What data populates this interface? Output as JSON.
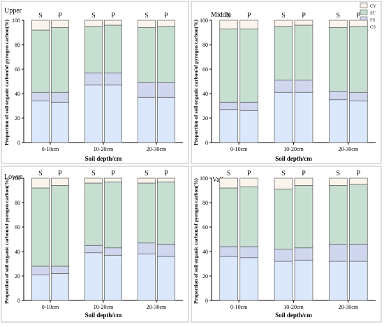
{
  "chart_data": [
    {
      "type": "bar",
      "stacked": true,
      "title": "Upper",
      "xlabel": "Soil depth/cm",
      "ylabel": "Proportion of soil organic carbon/of pyrogen carbon(%)",
      "ylim": [
        0,
        100
      ],
      "yticks": [
        0,
        20,
        40,
        60,
        80,
        100
      ],
      "categories": [
        "0-10cm",
        "10-20cm",
        "20-30cm"
      ],
      "bar_labels": [
        "S",
        "P"
      ],
      "series": [
        {
          "name": "CS",
          "color": "#dbe8fb",
          "values": [
            [
              34,
              33
            ],
            [
              47,
              47
            ],
            [
              37,
              37
            ]
          ]
        },
        {
          "name": "FS",
          "color": "#cfd6ee",
          "values": [
            [
              7,
              8
            ],
            [
              10,
              10
            ],
            [
              12,
              12
            ]
          ]
        },
        {
          "name": "ST",
          "color": "#c6dfd1",
          "values": [
            [
              51,
              53
            ],
            [
              38,
              39
            ],
            [
              45,
              46
            ]
          ]
        },
        {
          "name": "CY",
          "color": "#fbf4ec",
          "values": [
            [
              8,
              6
            ],
            [
              5,
              4
            ],
            [
              6,
              5
            ]
          ]
        }
      ],
      "legend": {
        "placement": "top-right"
      }
    },
    {
      "type": "bar",
      "stacked": true,
      "title": "Middle",
      "xlabel": "Soil depth/cm",
      "ylabel": "Proportion of soil organic carbon/of pyrogen carbon(%)",
      "ylim": [
        0,
        100
      ],
      "yticks": [
        0,
        20,
        40,
        60,
        80,
        100
      ],
      "categories": [
        "0-10cm",
        "10-20cm",
        "20-30cm"
      ],
      "bar_labels": [
        "S",
        "P"
      ],
      "series": [
        {
          "name": "CS",
          "color": "#dbe8fb",
          "values": [
            [
              27,
              26
            ],
            [
              41,
              41
            ],
            [
              35,
              34
            ]
          ]
        },
        {
          "name": "FS",
          "color": "#cfd6ee",
          "values": [
            [
              6,
              7
            ],
            [
              10,
              10
            ],
            [
              7,
              7
            ]
          ]
        },
        {
          "name": "ST",
          "color": "#c6dfd1",
          "values": [
            [
              60,
              60
            ],
            [
              44,
              45
            ],
            [
              52,
              54
            ]
          ]
        },
        {
          "name": "CY",
          "color": "#fbf4ec",
          "values": [
            [
              7,
              7
            ],
            [
              5,
              4
            ],
            [
              6,
              5
            ]
          ]
        }
      ],
      "legend": {
        "placement": "top-right"
      }
    },
    {
      "type": "bar",
      "stacked": true,
      "title": "Lower",
      "xlabel": "Soil depth/cm",
      "ylabel": "Proportion of soil organic carbon/of pyrogen carbon(%)",
      "ylim": [
        0,
        100
      ],
      "yticks": [
        0,
        20,
        40,
        60,
        80,
        100
      ],
      "categories": [
        "0-10cm",
        "10-20cm",
        "20-30cm"
      ],
      "bar_labels": [
        "S",
        "P"
      ],
      "series": [
        {
          "name": "CS",
          "color": "#dbe8fb",
          "values": [
            [
              21,
              22
            ],
            [
              39,
              37
            ],
            [
              38,
              36
            ]
          ]
        },
        {
          "name": "FS",
          "color": "#cfd6ee",
          "values": [
            [
              7,
              6
            ],
            [
              6,
              6
            ],
            [
              9,
              10
            ]
          ]
        },
        {
          "name": "ST",
          "color": "#c6dfd1",
          "values": [
            [
              64,
              66
            ],
            [
              51,
              54
            ],
            [
              49,
              51
            ]
          ]
        },
        {
          "name": "CY",
          "color": "#fbf4ec",
          "values": [
            [
              8,
              6
            ],
            [
              4,
              3
            ],
            [
              4,
              3
            ]
          ]
        }
      ]
    },
    {
      "type": "bar",
      "stacked": true,
      "title": "Valley",
      "xlabel": "Soil depth/cm",
      "ylabel": "Proportion of soil organic carbon/of pyrogen carbon(%)",
      "ylim": [
        0,
        100
      ],
      "yticks": [
        0,
        20,
        40,
        60,
        80,
        100
      ],
      "categories": [
        "0-10cm",
        "10-20cm",
        "20-30cm"
      ],
      "bar_labels": [
        "S",
        "P"
      ],
      "series": [
        {
          "name": "CS",
          "color": "#dbe8fb",
          "values": [
            [
              36,
              35
            ],
            [
              32,
              33
            ],
            [
              32,
              32
            ]
          ]
        },
        {
          "name": "FS",
          "color": "#cfd6ee",
          "values": [
            [
              8,
              9
            ],
            [
              10,
              10
            ],
            [
              14,
              14
            ]
          ]
        },
        {
          "name": "ST",
          "color": "#c6dfd1",
          "values": [
            [
              48,
              49
            ],
            [
              49,
              51
            ],
            [
              48,
              49
            ]
          ]
        },
        {
          "name": "CY",
          "color": "#fbf4ec",
          "values": [
            [
              8,
              7
            ],
            [
              9,
              6
            ],
            [
              6,
              5
            ]
          ]
        }
      ]
    }
  ]
}
